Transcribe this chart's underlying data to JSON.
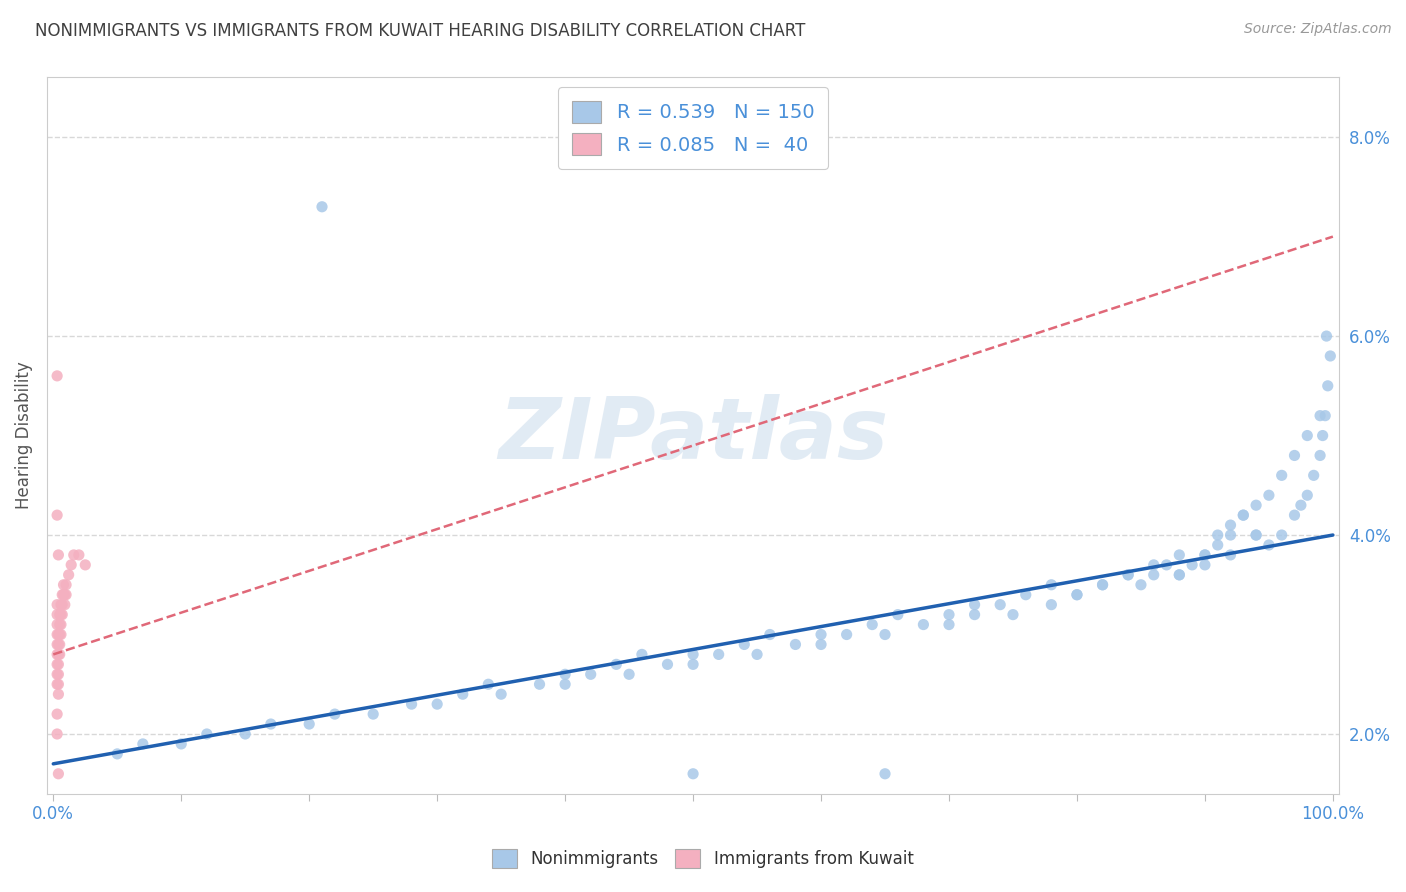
{
  "title": "NONIMMIGRANTS VS IMMIGRANTS FROM KUWAIT HEARING DISABILITY CORRELATION CHART",
  "source": "Source: ZipAtlas.com",
  "ylabel": "Hearing Disability",
  "xlim": [
    -0.005,
    1.005
  ],
  "ylim": [
    0.014,
    0.086
  ],
  "yticks": [
    0.02,
    0.04,
    0.06,
    0.08
  ],
  "ytick_labels": [
    "2.0%",
    "4.0%",
    "6.0%",
    "8.0%"
  ],
  "xticks": [
    0.0,
    0.1,
    0.2,
    0.3,
    0.4,
    0.5,
    0.6,
    0.7,
    0.8,
    0.9,
    1.0
  ],
  "xtick_labels": [
    "0.0%",
    "",
    "",
    "",
    "",
    "",
    "",
    "",
    "",
    "",
    "100.0%"
  ],
  "nonimm_color": "#a8c8e8",
  "imm_color": "#f4b0c0",
  "nonimm_line_color": "#2060b0",
  "imm_line_color": "#e06878",
  "background_color": "#ffffff",
  "grid_color": "#d8d8d8",
  "title_color": "#404040",
  "tick_color": "#4a90d9",
  "watermark_color": "#c5d8ea",
  "nonimm_x": [
    0.88,
    0.9,
    0.91,
    0.92,
    0.93,
    0.94,
    0.95,
    0.96,
    0.97,
    0.975,
    0.98,
    0.985,
    0.99,
    0.992,
    0.994,
    0.996,
    0.998,
    0.85,
    0.86,
    0.87,
    0.88,
    0.89,
    0.9,
    0.91,
    0.92,
    0.93,
    0.94,
    0.95,
    0.96,
    0.97,
    0.98,
    0.99,
    0.8,
    0.82,
    0.84,
    0.86,
    0.88,
    0.9,
    0.92,
    0.94,
    0.75,
    0.78,
    0.8,
    0.82,
    0.84,
    0.7,
    0.72,
    0.74,
    0.76,
    0.78,
    0.65,
    0.68,
    0.7,
    0.72,
    0.6,
    0.62,
    0.64,
    0.66,
    0.55,
    0.58,
    0.6,
    0.5,
    0.52,
    0.54,
    0.56,
    0.45,
    0.48,
    0.5,
    0.4,
    0.42,
    0.44,
    0.46,
    0.35,
    0.38,
    0.4,
    0.3,
    0.32,
    0.34,
    0.25,
    0.28,
    0.2,
    0.22,
    0.15,
    0.17,
    0.1,
    0.12,
    0.05,
    0.07,
    0.995,
    0.21,
    0.5,
    0.65
  ],
  "nonimm_y": [
    0.036,
    0.038,
    0.04,
    0.041,
    0.042,
    0.04,
    0.039,
    0.04,
    0.042,
    0.043,
    0.044,
    0.046,
    0.048,
    0.05,
    0.052,
    0.055,
    0.058,
    0.035,
    0.036,
    0.037,
    0.038,
    0.037,
    0.038,
    0.039,
    0.04,
    0.042,
    0.043,
    0.044,
    0.046,
    0.048,
    0.05,
    0.052,
    0.034,
    0.035,
    0.036,
    0.037,
    0.036,
    0.037,
    0.038,
    0.04,
    0.032,
    0.033,
    0.034,
    0.035,
    0.036,
    0.031,
    0.032,
    0.033,
    0.034,
    0.035,
    0.03,
    0.031,
    0.032,
    0.033,
    0.029,
    0.03,
    0.031,
    0.032,
    0.028,
    0.029,
    0.03,
    0.027,
    0.028,
    0.029,
    0.03,
    0.026,
    0.027,
    0.028,
    0.025,
    0.026,
    0.027,
    0.028,
    0.024,
    0.025,
    0.026,
    0.023,
    0.024,
    0.025,
    0.022,
    0.023,
    0.021,
    0.022,
    0.02,
    0.021,
    0.019,
    0.02,
    0.018,
    0.019,
    0.06,
    0.073,
    0.016,
    0.016
  ],
  "imm_x": [
    0.003,
    0.003,
    0.003,
    0.003,
    0.003,
    0.003,
    0.003,
    0.003,
    0.003,
    0.004,
    0.004,
    0.004,
    0.004,
    0.004,
    0.004,
    0.004,
    0.005,
    0.005,
    0.005,
    0.005,
    0.005,
    0.006,
    0.006,
    0.006,
    0.006,
    0.007,
    0.007,
    0.007,
    0.008,
    0.008,
    0.009,
    0.009,
    0.01,
    0.01,
    0.012,
    0.014,
    0.016,
    0.02,
    0.025
  ],
  "imm_y": [
    0.028,
    0.029,
    0.03,
    0.031,
    0.032,
    0.033,
    0.027,
    0.026,
    0.025,
    0.027,
    0.028,
    0.029,
    0.03,
    0.026,
    0.025,
    0.024,
    0.032,
    0.031,
    0.03,
    0.029,
    0.028,
    0.033,
    0.032,
    0.031,
    0.03,
    0.034,
    0.033,
    0.032,
    0.035,
    0.034,
    0.034,
    0.033,
    0.035,
    0.034,
    0.036,
    0.037,
    0.038,
    0.038,
    0.037
  ],
  "imm_extra_x": [
    0.003,
    0.003,
    0.003,
    0.003,
    0.004,
    0.004
  ],
  "imm_extra_y": [
    0.056,
    0.042,
    0.022,
    0.02,
    0.038,
    0.016
  ]
}
